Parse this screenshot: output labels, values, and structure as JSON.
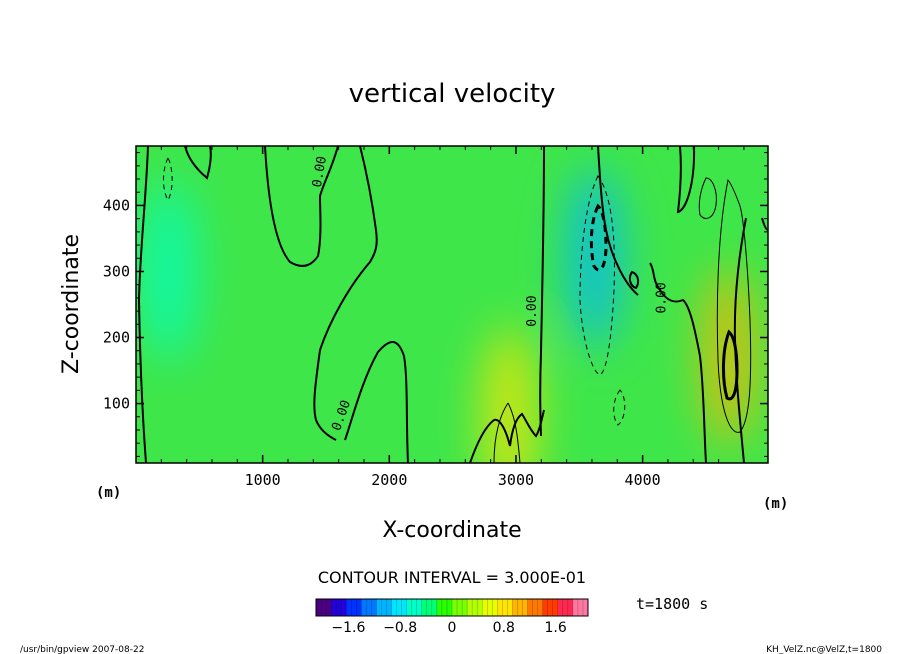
{
  "chart_data": {
    "type": "heatmap",
    "title": "vertical velocity",
    "xlabel": "X-coordinate",
    "ylabel": "Z-coordinate",
    "x_unit": "(m)",
    "y_unit": "(m)",
    "xlim": [
      0,
      4990
    ],
    "ylim": [
      10,
      490
    ],
    "x_ticks": [
      1000,
      2000,
      3000,
      4000
    ],
    "y_ticks": [
      100,
      200,
      300,
      400
    ],
    "x_tick_labels": [
      "1000",
      "2000",
      "3000",
      "4000"
    ],
    "y_tick_labels": [
      "100",
      "200",
      "300",
      "400"
    ],
    "contour_interval_text": "CONTOUR INTERVAL = 3.000E-01",
    "contour_labels": [
      {
        "text": "0.00",
        "x": 1480,
        "y": 450,
        "rotate": -80
      },
      {
        "text": "0.00",
        "x": 3160,
        "y": 240,
        "rotate": -90
      },
      {
        "text": "0.00",
        "x": 4180,
        "y": 260,
        "rotate": -90
      },
      {
        "text": "0.00",
        "x": 1650,
        "y": 80,
        "rotate": -70
      }
    ],
    "time_label": "t=1800 s",
    "colorbar": {
      "range": [
        -2.1,
        2.1
      ],
      "tick_values": [
        -1.6,
        -0.8,
        0,
        0.8,
        1.6
      ],
      "tick_labels": [
        "−1.6",
        "−0.8",
        "0",
        "0.8",
        "1.6"
      ],
      "colors": [
        "#4b0082",
        "#2400d8",
        "#0032ff",
        "#0078ff",
        "#00b4ff",
        "#00e6ff",
        "#00ffc8",
        "#00ff78",
        "#28ff00",
        "#78ff00",
        "#b4ff00",
        "#e6ff00",
        "#ffe600",
        "#ffb400",
        "#ff7800",
        "#ff3c00",
        "#ff2850",
        "#ff78a0"
      ]
    },
    "field_features": [
      {
        "name": "downdraft-1",
        "x": 260,
        "z": 300,
        "w_min": -0.6
      },
      {
        "name": "downdraft-2",
        "x": 3620,
        "z": 320,
        "w_min": -1.0
      },
      {
        "name": "updraft-1",
        "x": 4680,
        "z": 170,
        "w_max": 1.1
      },
      {
        "name": "updraft-2",
        "x": 2950,
        "z": 80,
        "w_max": 0.7
      }
    ]
  },
  "footer": {
    "left": "/usr/bin/gpview   2007-08-22",
    "right": "KH_VelZ.nc@VelZ,t=1800"
  },
  "colors": {
    "background_field": "#37e646",
    "frame": "#000000"
  }
}
